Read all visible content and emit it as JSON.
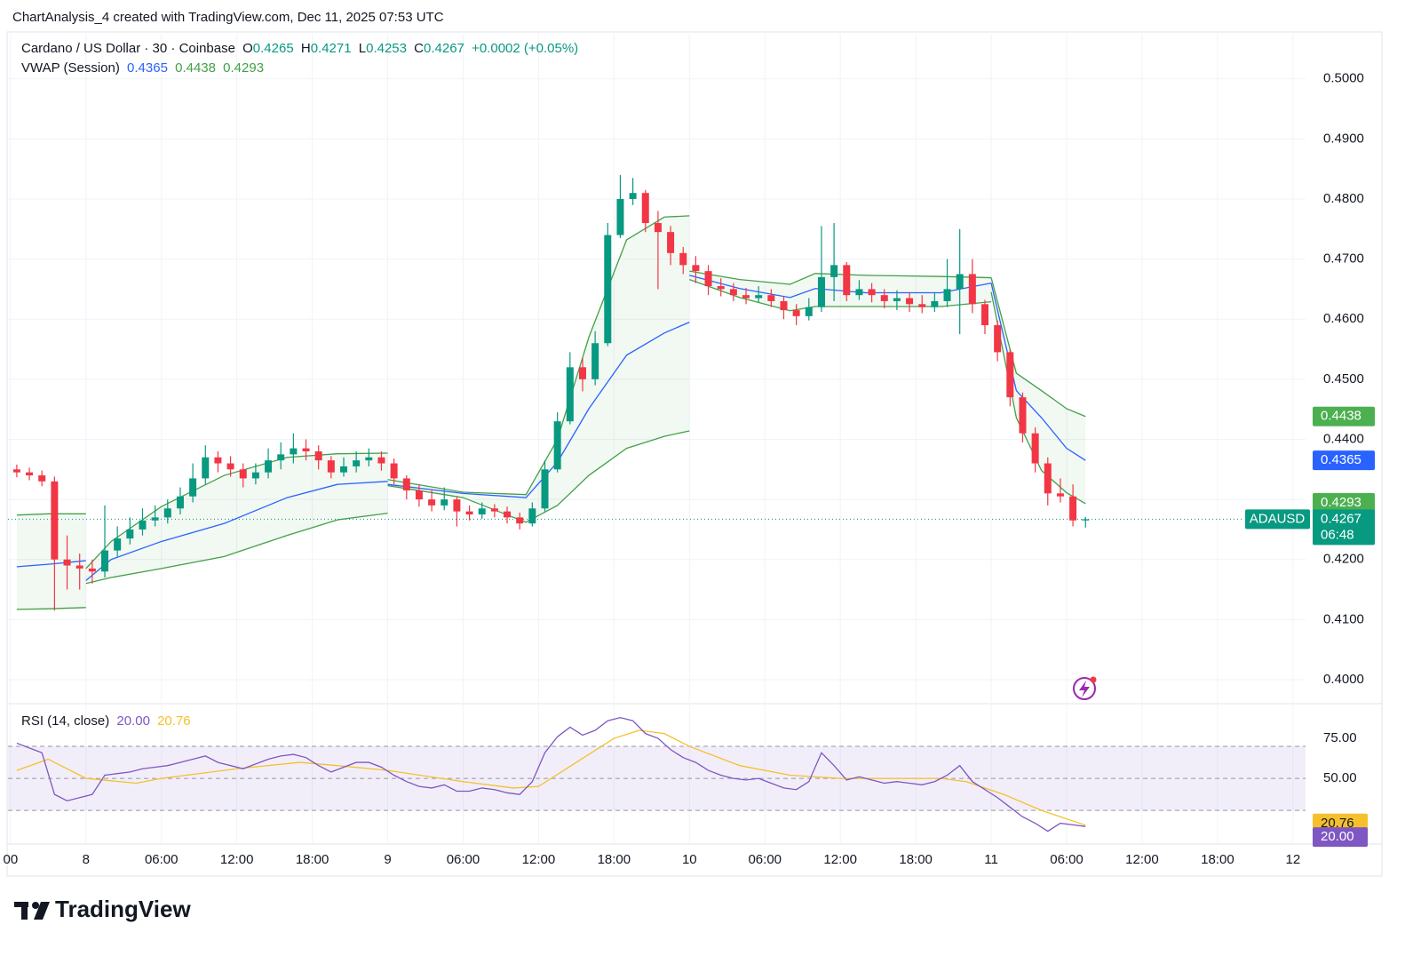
{
  "header": {
    "attribution": "ChartAnalysis_4 created with TradingView.com, Dec 11, 2025 07:53 UTC",
    "brand": "TradingView"
  },
  "chart_data": {
    "type": "candlestick",
    "title": "Cardano / US Dollar · 30 · Coinbase",
    "ohlc_letters": [
      "O",
      "H",
      "L",
      "C"
    ],
    "change": "+0.0002 (+0.05%)",
    "symbol": "ADAUSD",
    "countdown": "06:48",
    "up_color": "#089981",
    "down_color": "#f23645",
    "grid": true,
    "x": [
      -5.5,
      -4.5,
      -3.5,
      -2.5,
      -1.5,
      -0.5,
      0.5,
      1.5,
      2.5,
      3.5,
      4.5,
      5.5,
      6.5,
      7.5,
      8.5,
      9.5,
      10.5,
      11.5,
      12.5,
      13.5,
      14.5,
      15.5,
      16.5,
      17.5,
      18.5,
      19.5,
      20.5,
      21.5,
      22.5,
      23.5,
      24.5,
      25.5,
      26.5,
      27.5,
      28.5,
      29.5,
      30.5,
      31.5,
      32.5,
      33.5,
      34.5,
      35.5,
      36.5,
      37.5,
      38.5,
      39.5,
      40.5,
      41.5,
      42.5,
      43.5,
      44.5,
      45.5,
      46.5,
      47.5,
      48.5,
      49.5,
      50.5,
      51.5,
      52.5,
      53.5,
      54.5,
      55.5,
      56.5,
      57.5,
      58.5,
      59.5,
      60.5,
      61.5,
      62.5,
      63.5,
      64.5,
      65.5,
      66.5,
      67.5,
      68.5,
      69.5,
      70.5,
      71.5,
      72.5,
      73.5,
      74.5,
      75.5,
      76.5,
      77.5,
      78.5,
      79.5
    ],
    "open": [
      0.435,
      0.4345,
      0.434,
      0.433,
      0.42,
      0.419,
      0.4185,
      0.418,
      0.4215,
      0.4235,
      0.425,
      0.4265,
      0.427,
      0.4285,
      0.4305,
      0.4335,
      0.437,
      0.436,
      0.435,
      0.4335,
      0.4345,
      0.4365,
      0.4375,
      0.4385,
      0.438,
      0.4365,
      0.4345,
      0.4355,
      0.4365,
      0.437,
      0.436,
      0.4335,
      0.4315,
      0.43,
      0.429,
      0.43,
      0.428,
      0.4275,
      0.4285,
      0.428,
      0.427,
      0.426,
      0.4285,
      0.435,
      0.443,
      0.452,
      0.45,
      0.456,
      0.474,
      0.48,
      0.481,
      0.476,
      0.4745,
      0.471,
      0.469,
      0.468,
      0.4655,
      0.465,
      0.464,
      0.4635,
      0.464,
      0.463,
      0.4615,
      0.4605,
      0.462,
      0.467,
      0.469,
      0.464,
      0.465,
      0.464,
      0.463,
      0.4635,
      0.4625,
      0.462,
      0.463,
      0.465,
      0.4675,
      0.4625,
      0.459,
      0.4545,
      0.447,
      0.441,
      0.436,
      0.431,
      0.4305,
      0.4265
    ],
    "high": [
      0.4358,
      0.4353,
      0.4348,
      0.4338,
      0.424,
      0.421,
      0.42,
      0.429,
      0.4255,
      0.427,
      0.4285,
      0.429,
      0.43,
      0.432,
      0.436,
      0.439,
      0.438,
      0.4372,
      0.436,
      0.436,
      0.4385,
      0.4395,
      0.441,
      0.44,
      0.439,
      0.4372,
      0.437,
      0.438,
      0.4385,
      0.438,
      0.4368,
      0.434,
      0.4325,
      0.4315,
      0.432,
      0.4305,
      0.429,
      0.4295,
      0.4292,
      0.4288,
      0.4278,
      0.4295,
      0.4365,
      0.4445,
      0.4545,
      0.4535,
      0.458,
      0.476,
      0.484,
      0.4835,
      0.4815,
      0.478,
      0.4755,
      0.472,
      0.4705,
      0.469,
      0.4668,
      0.466,
      0.4652,
      0.4655,
      0.465,
      0.4638,
      0.4625,
      0.4635,
      0.4755,
      0.476,
      0.4695,
      0.4665,
      0.466,
      0.465,
      0.4648,
      0.4645,
      0.464,
      0.4645,
      0.47,
      0.475,
      0.47,
      0.4632,
      0.4598,
      0.455,
      0.4478,
      0.442,
      0.437,
      0.4335,
      0.4325,
      0.4271
    ],
    "low": [
      0.4337,
      0.4332,
      0.4322,
      0.4115,
      0.415,
      0.415,
      0.416,
      0.417,
      0.4205,
      0.4225,
      0.424,
      0.4255,
      0.426,
      0.4275,
      0.4295,
      0.4325,
      0.4345,
      0.4338,
      0.432,
      0.4325,
      0.4335,
      0.435,
      0.436,
      0.4365,
      0.435,
      0.4335,
      0.4338,
      0.4345,
      0.4355,
      0.4348,
      0.4325,
      0.43,
      0.4288,
      0.428,
      0.4282,
      0.4255,
      0.4265,
      0.4268,
      0.427,
      0.426,
      0.425,
      0.4255,
      0.428,
      0.4345,
      0.4425,
      0.448,
      0.449,
      0.4555,
      0.4735,
      0.479,
      0.4745,
      0.465,
      0.469,
      0.4675,
      0.466,
      0.464,
      0.4638,
      0.463,
      0.4625,
      0.4628,
      0.462,
      0.46,
      0.459,
      0.4598,
      0.4612,
      0.463,
      0.463,
      0.4632,
      0.4628,
      0.4618,
      0.4615,
      0.4612,
      0.461,
      0.4612,
      0.462,
      0.4575,
      0.461,
      0.4575,
      0.453,
      0.4455,
      0.4395,
      0.4345,
      0.429,
      0.4295,
      0.4255,
      0.4253
    ],
    "close": [
      0.4345,
      0.434,
      0.433,
      0.42,
      0.419,
      0.4185,
      0.418,
      0.4215,
      0.4235,
      0.425,
      0.4265,
      0.427,
      0.4285,
      0.4305,
      0.4335,
      0.437,
      0.436,
      0.435,
      0.4335,
      0.4345,
      0.4365,
      0.4375,
      0.4385,
      0.438,
      0.4365,
      0.4345,
      0.4355,
      0.4365,
      0.437,
      0.436,
      0.4335,
      0.4315,
      0.43,
      0.429,
      0.43,
      0.428,
      0.4275,
      0.4285,
      0.428,
      0.427,
      0.426,
      0.4285,
      0.435,
      0.443,
      0.452,
      0.45,
      0.456,
      0.474,
      0.48,
      0.481,
      0.476,
      0.4745,
      0.471,
      0.469,
      0.468,
      0.4655,
      0.465,
      0.464,
      0.4635,
      0.464,
      0.463,
      0.4615,
      0.4605,
      0.462,
      0.467,
      0.469,
      0.464,
      0.465,
      0.464,
      0.463,
      0.4635,
      0.4625,
      0.462,
      0.463,
      0.465,
      0.4675,
      0.4625,
      0.459,
      0.4545,
      0.447,
      0.441,
      0.436,
      0.431,
      0.4305,
      0.4265,
      0.4267
    ],
    "xlim": [
      -6.2,
      97
    ],
    "xticks": [
      {
        "value": -6,
        "label": "00"
      },
      {
        "value": 0,
        "label": "8"
      },
      {
        "value": 6,
        "label": "06:00"
      },
      {
        "value": 12,
        "label": "12:00"
      },
      {
        "value": 18,
        "label": "18:00"
      },
      {
        "value": 24,
        "label": "9"
      },
      {
        "value": 30,
        "label": "06:00"
      },
      {
        "value": 36,
        "label": "12:00"
      },
      {
        "value": 42,
        "label": "18:00"
      },
      {
        "value": 48,
        "label": "10"
      },
      {
        "value": 54,
        "label": "06:00"
      },
      {
        "value": 60,
        "label": "12:00"
      },
      {
        "value": 66,
        "label": "18:00"
      },
      {
        "value": 72,
        "label": "11"
      },
      {
        "value": 78,
        "label": "06:00"
      },
      {
        "value": 84,
        "label": "12:00"
      },
      {
        "value": 90,
        "label": "18:00"
      },
      {
        "value": 96,
        "label": "12"
      }
    ],
    "ylim": [
      0.3963,
      0.5075
    ],
    "yticks": [
      {
        "value": 0.4,
        "label": "0.4000"
      },
      {
        "value": 0.41,
        "label": "0.4100"
      },
      {
        "value": 0.42,
        "label": "0.4200"
      },
      {
        "value": 0.43,
        "label": "0.4300"
      },
      {
        "value": 0.44,
        "label": "0.4400"
      },
      {
        "value": 0.45,
        "label": "0.4500"
      },
      {
        "value": 0.46,
        "label": "0.4600"
      },
      {
        "value": 0.47,
        "label": "0.4700"
      },
      {
        "value": 0.48,
        "label": "0.4800"
      },
      {
        "value": 0.49,
        "label": "0.4900"
      },
      {
        "value": 0.5,
        "label": "0.5000"
      }
    ],
    "vwap": {
      "name": "VWAP (Session)",
      "color": "#2962ff",
      "band_color": "#43a047",
      "sessions": [
        {
          "x": [
            -5.5,
            -3,
            0
          ],
          "vwap": [
            0.4188,
            0.4192,
            0.4198
          ],
          "upper": [
            0.4274,
            0.4276,
            0.4276
          ],
          "lower": [
            0.4117,
            0.4118,
            0.412
          ]
        },
        {
          "x": [
            0,
            2,
            6,
            11,
            16,
            20,
            24
          ],
          "vwap": [
            0.4165,
            0.42,
            0.423,
            0.426,
            0.4303,
            0.4325,
            0.433
          ],
          "upper": [
            0.4185,
            0.423,
            0.4288,
            0.434,
            0.437,
            0.4376,
            0.4377
          ],
          "lower": [
            0.416,
            0.417,
            0.4185,
            0.4205,
            0.424,
            0.4266,
            0.4277
          ]
        },
        {
          "x": [
            24,
            30,
            35,
            37.5,
            40,
            43,
            46,
            48
          ],
          "vwap": [
            0.4325,
            0.431,
            0.4303,
            0.4362,
            0.4451,
            0.454,
            0.4577,
            0.4595
          ],
          "upper": [
            0.4333,
            0.4312,
            0.4308,
            0.44,
            0.457,
            0.4732,
            0.477,
            0.4772
          ],
          "lower": [
            0.4323,
            0.4303,
            0.4262,
            0.429,
            0.434,
            0.4385,
            0.4405,
            0.4414
          ]
        },
        {
          "x": [
            48,
            52,
            56,
            58,
            62,
            68,
            72
          ],
          "vwap": [
            0.4673,
            0.4651,
            0.4636,
            0.4651,
            0.4644,
            0.4644,
            0.466
          ],
          "upper": [
            0.468,
            0.4666,
            0.4658,
            0.4676,
            0.4673,
            0.4671,
            0.4669
          ],
          "lower": [
            0.4666,
            0.4636,
            0.4614,
            0.4621,
            0.4621,
            0.4621,
            0.4629
          ]
        },
        {
          "x": [
            72,
            74,
            76,
            78,
            79.5
          ],
          "vwap": [
            0.466,
            0.4481,
            0.4436,
            0.4385,
            0.4365
          ],
          "upper": [
            0.4669,
            0.451,
            0.4481,
            0.4451,
            0.4438
          ],
          "lower": [
            0.4645,
            0.4436,
            0.4348,
            0.4311,
            0.4293
          ]
        }
      ]
    },
    "rsi": {
      "name": "RSI (14, close)",
      "color": "#7e57c2",
      "values": [
        72,
        69,
        66,
        40,
        36,
        38,
        40,
        52,
        53,
        54,
        56,
        57,
        58,
        60,
        62,
        64,
        60,
        58,
        56,
        59,
        62,
        64,
        65,
        63,
        58,
        54,
        57,
        60,
        60,
        57,
        52,
        48,
        45,
        44,
        46,
        42,
        42,
        44,
        43,
        41,
        40,
        48,
        66,
        76,
        82,
        77,
        80,
        86,
        88,
        86,
        78,
        75,
        68,
        63,
        60,
        55,
        52,
        50,
        49,
        50,
        47,
        44,
        43,
        48,
        66,
        58,
        49,
        51,
        49,
        47,
        48,
        47,
        46,
        48,
        52,
        58,
        48,
        43,
        38,
        32,
        26,
        22,
        17,
        22,
        21,
        20
      ],
      "value_label": "20.00",
      "ylim": [
        9,
        95
      ],
      "yticks": [
        {
          "value": 50,
          "label": "50.00"
        },
        {
          "value": 75,
          "label": "75.00"
        }
      ],
      "levels": [
        30,
        50,
        70
      ],
      "ma": {
        "color": "#f5c02c",
        "x": [
          -5.5,
          -3,
          0,
          4,
          6,
          12,
          17,
          20,
          24,
          30,
          34,
          36,
          39,
          42,
          44,
          46,
          48,
          52,
          56,
          60,
          68,
          70,
          73,
          76,
          79.5
        ],
        "values": [
          55,
          62,
          50,
          47,
          50,
          56,
          60,
          58,
          55,
          48,
          44,
          45,
          60,
          75,
          80,
          78,
          70,
          58,
          52,
          50,
          50,
          48,
          40,
          30,
          20.76
        ]
      }
    }
  }
}
